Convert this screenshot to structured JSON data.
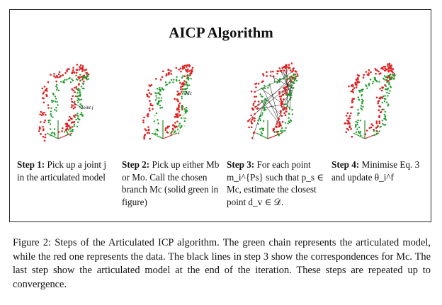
{
  "figure": {
    "title": "AICP Algorithm",
    "panels": [
      {
        "image_name": "step1-articulated-model",
        "annotation": "Joint j",
        "step_label": "Step 1:",
        "step_text": "Pick up a joint j in the articulated model"
      },
      {
        "image_name": "step2-chosen-branch",
        "annotation": "Mc",
        "step_label": "Step 2:",
        "step_text": "Pick up either Mb or Mo. Call the chosen branch Mc (solid green in figure)"
      },
      {
        "image_name": "step3-correspondences",
        "annotation": "",
        "step_label": "Step 3:",
        "step_text": "For each point m_i^{Ps} such that p_s ∈ Mc, estimate the closest point d_v ∈ 𝒟."
      },
      {
        "image_name": "step4-updated-model",
        "annotation": "",
        "step_label": "Step 4:",
        "step_text": "Minimise Eq. 3 and update θ_i^f"
      }
    ]
  },
  "caption": {
    "label": "Figure 2:",
    "text": "Steps of the Articulated ICP algorithm. The green chain represents the articulated model, while the red one represents the data. The black lines in step 3 show the correspondences for Mc. The last step show the articulated model at the end of the iteration. These steps are repeated up to convergence."
  },
  "colors": {
    "data_points": "#e02020",
    "model_points": "#1f9a2a",
    "model_points_light": "#b8e3b0",
    "correspondence_lines": "#000000",
    "axis_red": "#cc2222",
    "axis_green": "#2a8a2a"
  }
}
